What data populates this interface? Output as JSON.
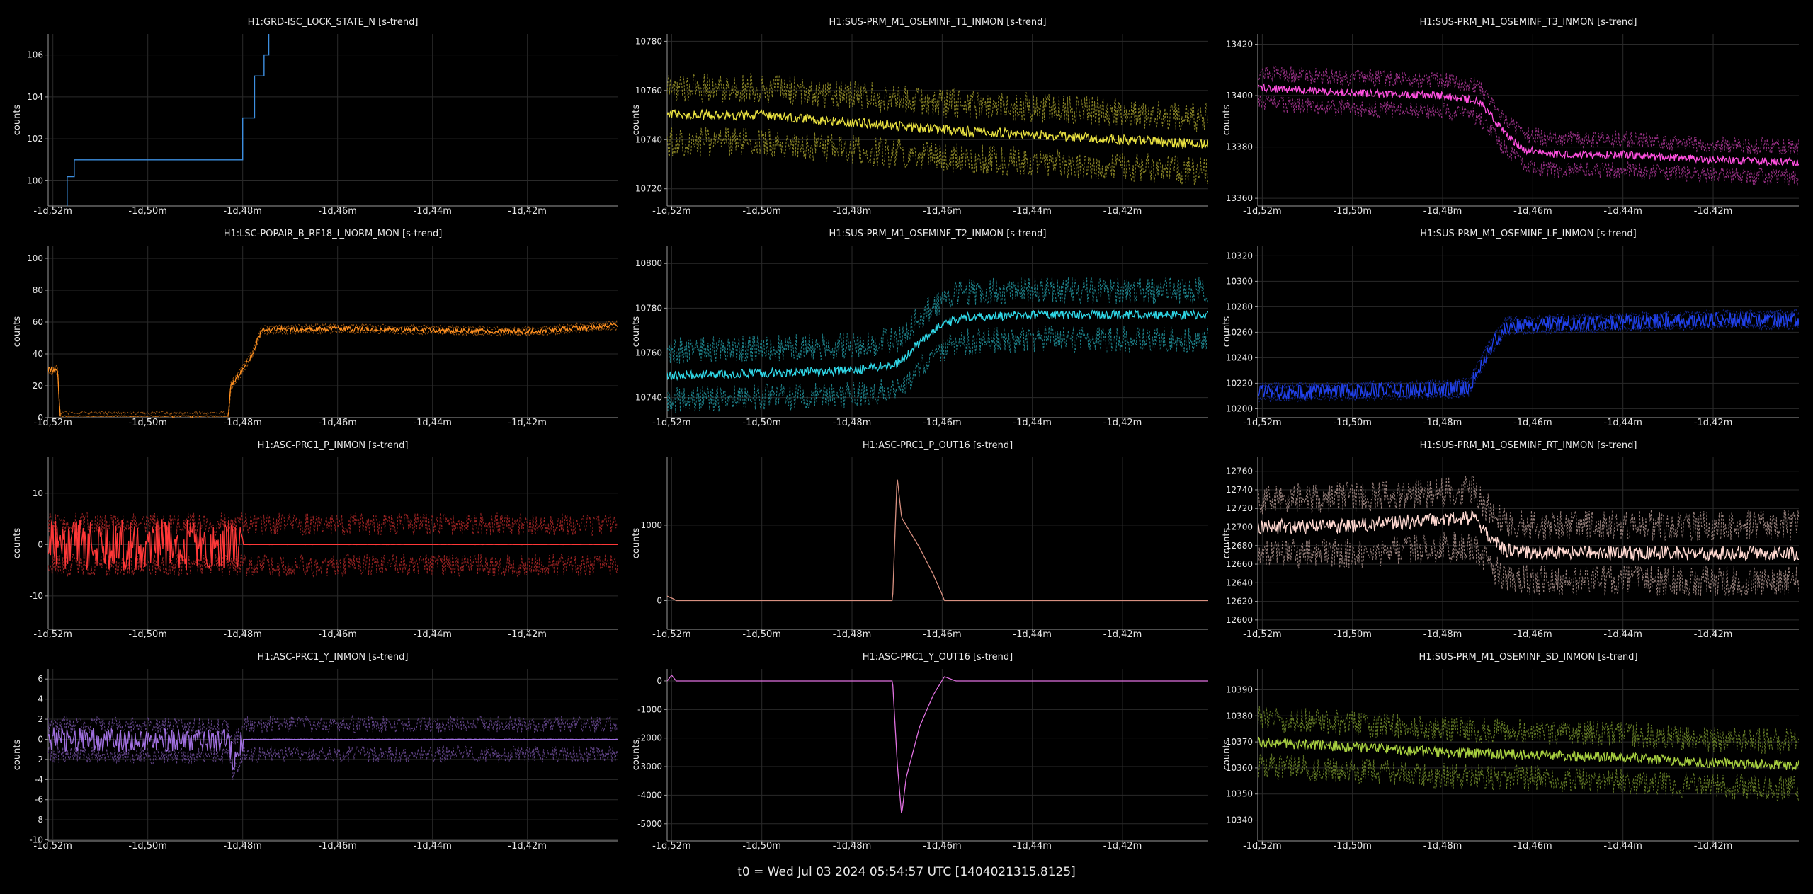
{
  "footer": "t0 = Wed Jul 03 2024 05:54:57 UTC [1404021315.8125]",
  "x_axis": {
    "ticks": [
      -52,
      -50,
      -48,
      -46,
      -44,
      -42
    ],
    "tick_labels": [
      "-1d,52m",
      "-1d,50m",
      "-1d,48m",
      "-1d,46m",
      "-1d,44m",
      "-1d,42m"
    ],
    "range": [
      -52.1,
      -40.1
    ],
    "unit": "minutes relative to t0 (-1d)"
  },
  "style": {
    "background": "#000000",
    "grid": "#2a2a2a",
    "axis": "#9a9a9a",
    "text": "#e8e8e8"
  },
  "chart_data": [
    {
      "name": "grd-isc-lock-state",
      "type": "line",
      "title": "H1:GRD-ISC_LOCK_STATE_N [s-trend]",
      "ylabel": "counts",
      "color": "#3d8fe0",
      "ylim": [
        98.8,
        107
      ],
      "yticks": [
        100,
        102,
        104,
        106
      ],
      "grid": true,
      "step": true,
      "bands": false,
      "series": [
        {
          "x": [
            -51.7,
            -51.7,
            -51.55,
            -48.15,
            -48.0,
            -47.85,
            -47.75,
            -47.7,
            -47.55,
            -47.45
          ],
          "y": [
            98.8,
            100.2,
            101,
            101,
            103,
            103,
            105,
            105,
            106,
            107
          ]
        }
      ]
    },
    {
      "name": "sus-prm-t1",
      "type": "line",
      "title": "H1:SUS-PRM_M1_OSEMINF_T1_INMON [s-trend]",
      "ylabel": "counts",
      "color": "#e8e040",
      "ylim": [
        10713,
        10783
      ],
      "yticks": [
        10720,
        10740,
        10760,
        10780
      ],
      "grid": true,
      "bands": true,
      "band_width": 11,
      "noise": 2,
      "series": [
        {
          "x": [
            -52.1,
            -50,
            -48,
            -46,
            -44,
            -42,
            -40.1
          ],
          "y": [
            10750,
            10750,
            10747,
            10744,
            10742,
            10740,
            10738
          ]
        }
      ]
    },
    {
      "name": "sus-prm-t3",
      "type": "line",
      "title": "H1:SUS-PRM_M1_OSEMINF_T3_INMON [s-trend]",
      "ylabel": "counts",
      "color": "#ff50e0",
      "ylim": [
        13357,
        13424
      ],
      "yticks": [
        13360,
        13380,
        13400,
        13420
      ],
      "grid": true,
      "bands": true,
      "band_width": 6,
      "noise": 1.5,
      "series": [
        {
          "x": [
            -52.1,
            -50,
            -48,
            -47.2,
            -46.6,
            -46.2,
            -45.5,
            -44,
            -42,
            -40.1
          ],
          "y": [
            13403,
            13401,
            13400,
            13398,
            13385,
            13379,
            13377,
            13377,
            13375,
            13374
          ]
        }
      ]
    },
    {
      "name": "lsc-popair",
      "type": "line",
      "title": "H1:LSC-POPAIR_B_RF18_I_NORM_MON [s-trend]",
      "ylabel": "counts",
      "color": "#ff9020",
      "ylim": [
        0,
        108
      ],
      "yticks": [
        0,
        20,
        40,
        60,
        80,
        100
      ],
      "grid": true,
      "bands": true,
      "band_width": 2,
      "noise": 1.5,
      "series": [
        {
          "x": [
            -52.1,
            -51.9,
            -51.85,
            -48.3,
            -48.25,
            -48.0,
            -47.8,
            -47.6,
            -46,
            -44,
            -42,
            -40.1
          ],
          "y": [
            30,
            30,
            1,
            1,
            20,
            30,
            40,
            55,
            56,
            55,
            54,
            58
          ]
        }
      ]
    },
    {
      "name": "sus-prm-t2",
      "type": "line",
      "title": "H1:SUS-PRM_M1_OSEMINF_T2_INMON [s-trend]",
      "ylabel": "counts",
      "color": "#30d8e8",
      "ylim": [
        10731,
        10808
      ],
      "yticks": [
        10740,
        10760,
        10780,
        10800
      ],
      "grid": true,
      "bands": true,
      "band_width": 11,
      "noise": 2,
      "series": [
        {
          "x": [
            -52.1,
            -50,
            -48,
            -47.0,
            -46.5,
            -46.0,
            -45.5,
            -44,
            -42,
            -40.1
          ],
          "y": [
            10750,
            10751,
            10752,
            10755,
            10765,
            10773,
            10776,
            10777,
            10777,
            10777
          ]
        }
      ]
    },
    {
      "name": "sus-prm-lf",
      "type": "line",
      "title": "H1:SUS-PRM_M1_OSEMINF_LF_INMON [s-trend]",
      "ylabel": "counts",
      "color": "#2040e8",
      "ylim": [
        10193,
        10328
      ],
      "yticks": [
        10200,
        10220,
        10240,
        10260,
        10280,
        10300,
        10320
      ],
      "grid": true,
      "bands": true,
      "band_width": 5,
      "noise": 6,
      "series": [
        {
          "x": [
            -52.1,
            -50,
            -48,
            -47.4,
            -47.0,
            -46.6,
            -44,
            -42,
            -40.1
          ],
          "y": [
            10213,
            10214,
            10215,
            10217,
            10245,
            10265,
            10268,
            10270,
            10270
          ]
        }
      ]
    },
    {
      "name": "asc-prc1-p-inmon",
      "type": "line",
      "title": "H1:ASC-PRC1_P_INMON [s-trend]",
      "ylabel": "counts",
      "color": "#ff3838",
      "ylim": [
        -16.5,
        17
      ],
      "yticks": [
        -10,
        0,
        10
      ],
      "grid": true,
      "bands": true,
      "band_width": 4,
      "noise": 5,
      "series": [
        {
          "x": [
            -52.1,
            -48.05,
            -48.0,
            -46,
            -44,
            -42,
            -40.1
          ],
          "y": [
            0,
            0,
            0,
            0,
            0,
            0,
            0
          ]
        }
      ]
    },
    {
      "name": "asc-prc1-p-out16",
      "type": "line",
      "title": "H1:ASC-PRC1_P_OUT16 [s-trend]",
      "ylabel": "counts",
      "color": "#d89080",
      "ylim": [
        -380,
        1900
      ],
      "yticks": [
        0,
        1000
      ],
      "grid": true,
      "bands": true,
      "band_width": 0,
      "noise": 0,
      "series": [
        {
          "x": [
            -52.1,
            -51.95,
            -51.9,
            -47.1,
            -47.0,
            -46.9,
            -46.5,
            -46.2,
            -46.0,
            -45.95,
            -44,
            -42,
            -40.1
          ],
          "y": [
            60,
            20,
            0,
            0,
            1650,
            1100,
            700,
            350,
            80,
            0,
            0,
            0,
            0
          ]
        }
      ]
    },
    {
      "name": "sus-prm-rt",
      "type": "line",
      "title": "H1:SUS-PRM_M1_OSEMINF_RT_INMON [s-trend]",
      "ylabel": "counts",
      "color": "#ffd8d0",
      "ylim": [
        12590,
        12775
      ],
      "yticks": [
        12600,
        12620,
        12640,
        12660,
        12680,
        12700,
        12720,
        12740,
        12760
      ],
      "grid": true,
      "bands": true,
      "band_width": 30,
      "noise": 8,
      "series": [
        {
          "x": [
            -52.1,
            -50,
            -48,
            -47.3,
            -47.0,
            -46.6,
            -46.0,
            -44,
            -42,
            -40.1
          ],
          "y": [
            12700,
            12702,
            12708,
            12710,
            12690,
            12675,
            12672,
            12672,
            12672,
            12672
          ]
        }
      ]
    },
    {
      "name": "asc-prc1-y-inmon",
      "type": "line",
      "title": "H1:ASC-PRC1_Y_INMON [s-trend]",
      "ylabel": "counts",
      "color": "#a070e0",
      "ylim": [
        -10.1,
        7
      ],
      "yticks": [
        -10,
        -8,
        -6,
        -4,
        -2,
        0,
        2,
        4,
        6
      ],
      "grid": true,
      "bands": true,
      "band_width": 1.5,
      "noise": 1.2,
      "series": [
        {
          "x": [
            -52.1,
            -48.3,
            -48.2,
            -48.0,
            -46,
            -44,
            -42,
            -40.1
          ],
          "y": [
            0,
            -0.2,
            -2,
            0,
            0,
            0,
            0,
            0
          ]
        }
      ]
    },
    {
      "name": "asc-prc1-y-out16",
      "type": "line",
      "title": "H1:ASC-PRC1_Y_OUT16 [s-trend]",
      "ylabel": "counts",
      "color": "#e070e0",
      "ylim": [
        -5600,
        420
      ],
      "yticks": [
        -5000,
        -4000,
        -3000,
        -2000,
        -1000,
        0
      ],
      "grid": true,
      "bands": true,
      "band_width": 0,
      "noise": 0,
      "series": [
        {
          "x": [
            -52.1,
            -52.0,
            -51.9,
            -47.1,
            -47.0,
            -46.9,
            -46.8,
            -46.5,
            -46.2,
            -45.95,
            -45.7,
            -44,
            -42,
            -40.1
          ],
          "y": [
            0,
            200,
            0,
            0,
            -2800,
            -4700,
            -3400,
            -1600,
            -500,
            150,
            0,
            0,
            0,
            0
          ]
        }
      ]
    },
    {
      "name": "sus-prm-sd",
      "type": "line",
      "title": "H1:SUS-PRM_M1_OSEMINF_SD_INMON [s-trend]",
      "ylabel": "counts",
      "color": "#a8d040",
      "ylim": [
        10332,
        10398
      ],
      "yticks": [
        10340,
        10350,
        10360,
        10370,
        10380,
        10390
      ],
      "grid": true,
      "bands": true,
      "band_width": 9,
      "noise": 2,
      "series": [
        {
          "x": [
            -52.1,
            -50,
            -48,
            -46,
            -44,
            -42,
            -40.1
          ],
          "y": [
            10370,
            10368,
            10366,
            10365,
            10364,
            10362,
            10361
          ]
        }
      ]
    }
  ]
}
